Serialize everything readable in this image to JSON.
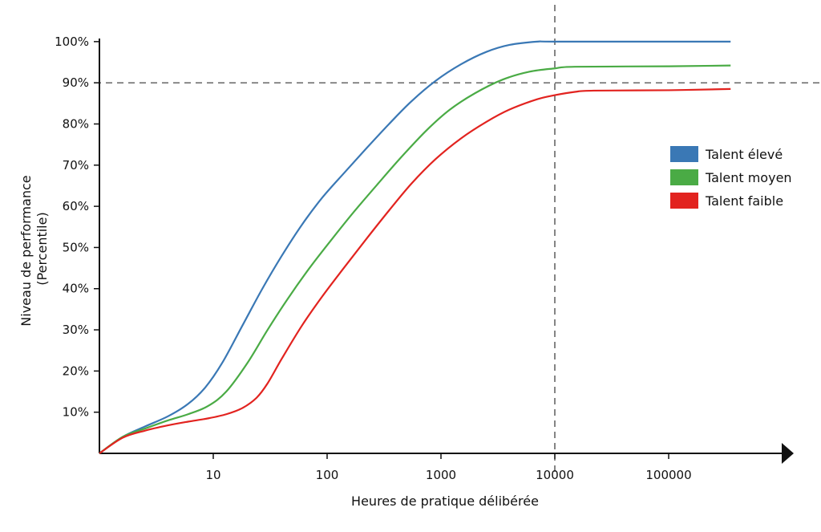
{
  "chart_data": {
    "type": "line",
    "xlabel": "Heures de pratique délibérée",
    "ylabel_line1": "Niveau de performance",
    "ylabel_line2": "(Percentile)",
    "x_scale": "log",
    "x_ticks": [
      10,
      100,
      1000,
      10000,
      100000
    ],
    "x_tick_labels": [
      "10",
      "100",
      "1000",
      "10000",
      "100000"
    ],
    "ylim": [
      0,
      100
    ],
    "y_ticks": [
      10,
      20,
      30,
      40,
      50,
      60,
      70,
      80,
      90,
      100
    ],
    "y_tick_labels": [
      "10%",
      "20%",
      "30%",
      "40%",
      "50%",
      "60%",
      "70%",
      "80%",
      "90%",
      "100%"
    ],
    "reference_lines": {
      "y": 90,
      "x": 10000
    },
    "legend_position": "right",
    "series": [
      {
        "name": "Talent élevé",
        "color": "#3a78b5",
        "points": [
          [
            1,
            0
          ],
          [
            1.6,
            4
          ],
          [
            2.5,
            6.5
          ],
          [
            4,
            9
          ],
          [
            6,
            12
          ],
          [
            8.5,
            16
          ],
          [
            12,
            22
          ],
          [
            18,
            31
          ],
          [
            27,
            40
          ],
          [
            40,
            48
          ],
          [
            60,
            55.5
          ],
          [
            90,
            62
          ],
          [
            140,
            68
          ],
          [
            220,
            74
          ],
          [
            350,
            80
          ],
          [
            550,
            85.5
          ],
          [
            900,
            90.5
          ],
          [
            1500,
            94.5
          ],
          [
            2500,
            97.5
          ],
          [
            4000,
            99.2
          ],
          [
            7000,
            100
          ],
          [
            10000,
            100
          ],
          [
            100000,
            100
          ],
          [
            350000,
            100
          ]
        ]
      },
      {
        "name": "Talent moyen",
        "color": "#4aab45",
        "points": [
          [
            1,
            0
          ],
          [
            1.6,
            4
          ],
          [
            2.5,
            6
          ],
          [
            4,
            8
          ],
          [
            6,
            9.5
          ],
          [
            9,
            11.5
          ],
          [
            13,
            15
          ],
          [
            20,
            22
          ],
          [
            30,
            30
          ],
          [
            45,
            37.5
          ],
          [
            70,
            45
          ],
          [
            110,
            52
          ],
          [
            170,
            58.5
          ],
          [
            280,
            65.5
          ],
          [
            450,
            72
          ],
          [
            750,
            78.5
          ],
          [
            1200,
            83.5
          ],
          [
            2000,
            87.5
          ],
          [
            3500,
            90.8
          ],
          [
            6000,
            92.7
          ],
          [
            10000,
            93.5
          ],
          [
            15000,
            93.9
          ],
          [
            100000,
            94
          ],
          [
            350000,
            94.2
          ]
        ]
      },
      {
        "name": "Talent faible",
        "color": "#e2231f",
        "points": [
          [
            1,
            0
          ],
          [
            1.6,
            3.8
          ],
          [
            2.5,
            5.5
          ],
          [
            4,
            6.8
          ],
          [
            6,
            7.7
          ],
          [
            9,
            8.5
          ],
          [
            13,
            9.5
          ],
          [
            18,
            11
          ],
          [
            24,
            13.5
          ],
          [
            30,
            17
          ],
          [
            40,
            23
          ],
          [
            60,
            31
          ],
          [
            90,
            38
          ],
          [
            140,
            45
          ],
          [
            220,
            52
          ],
          [
            350,
            59
          ],
          [
            550,
            65.5
          ],
          [
            900,
            71.5
          ],
          [
            1500,
            76.5
          ],
          [
            2500,
            80.5
          ],
          [
            4000,
            83.5
          ],
          [
            7000,
            86
          ],
          [
            10000,
            87
          ],
          [
            15000,
            87.8
          ],
          [
            22000,
            88.1
          ],
          [
            100000,
            88.2
          ],
          [
            350000,
            88.5
          ]
        ]
      }
    ]
  }
}
